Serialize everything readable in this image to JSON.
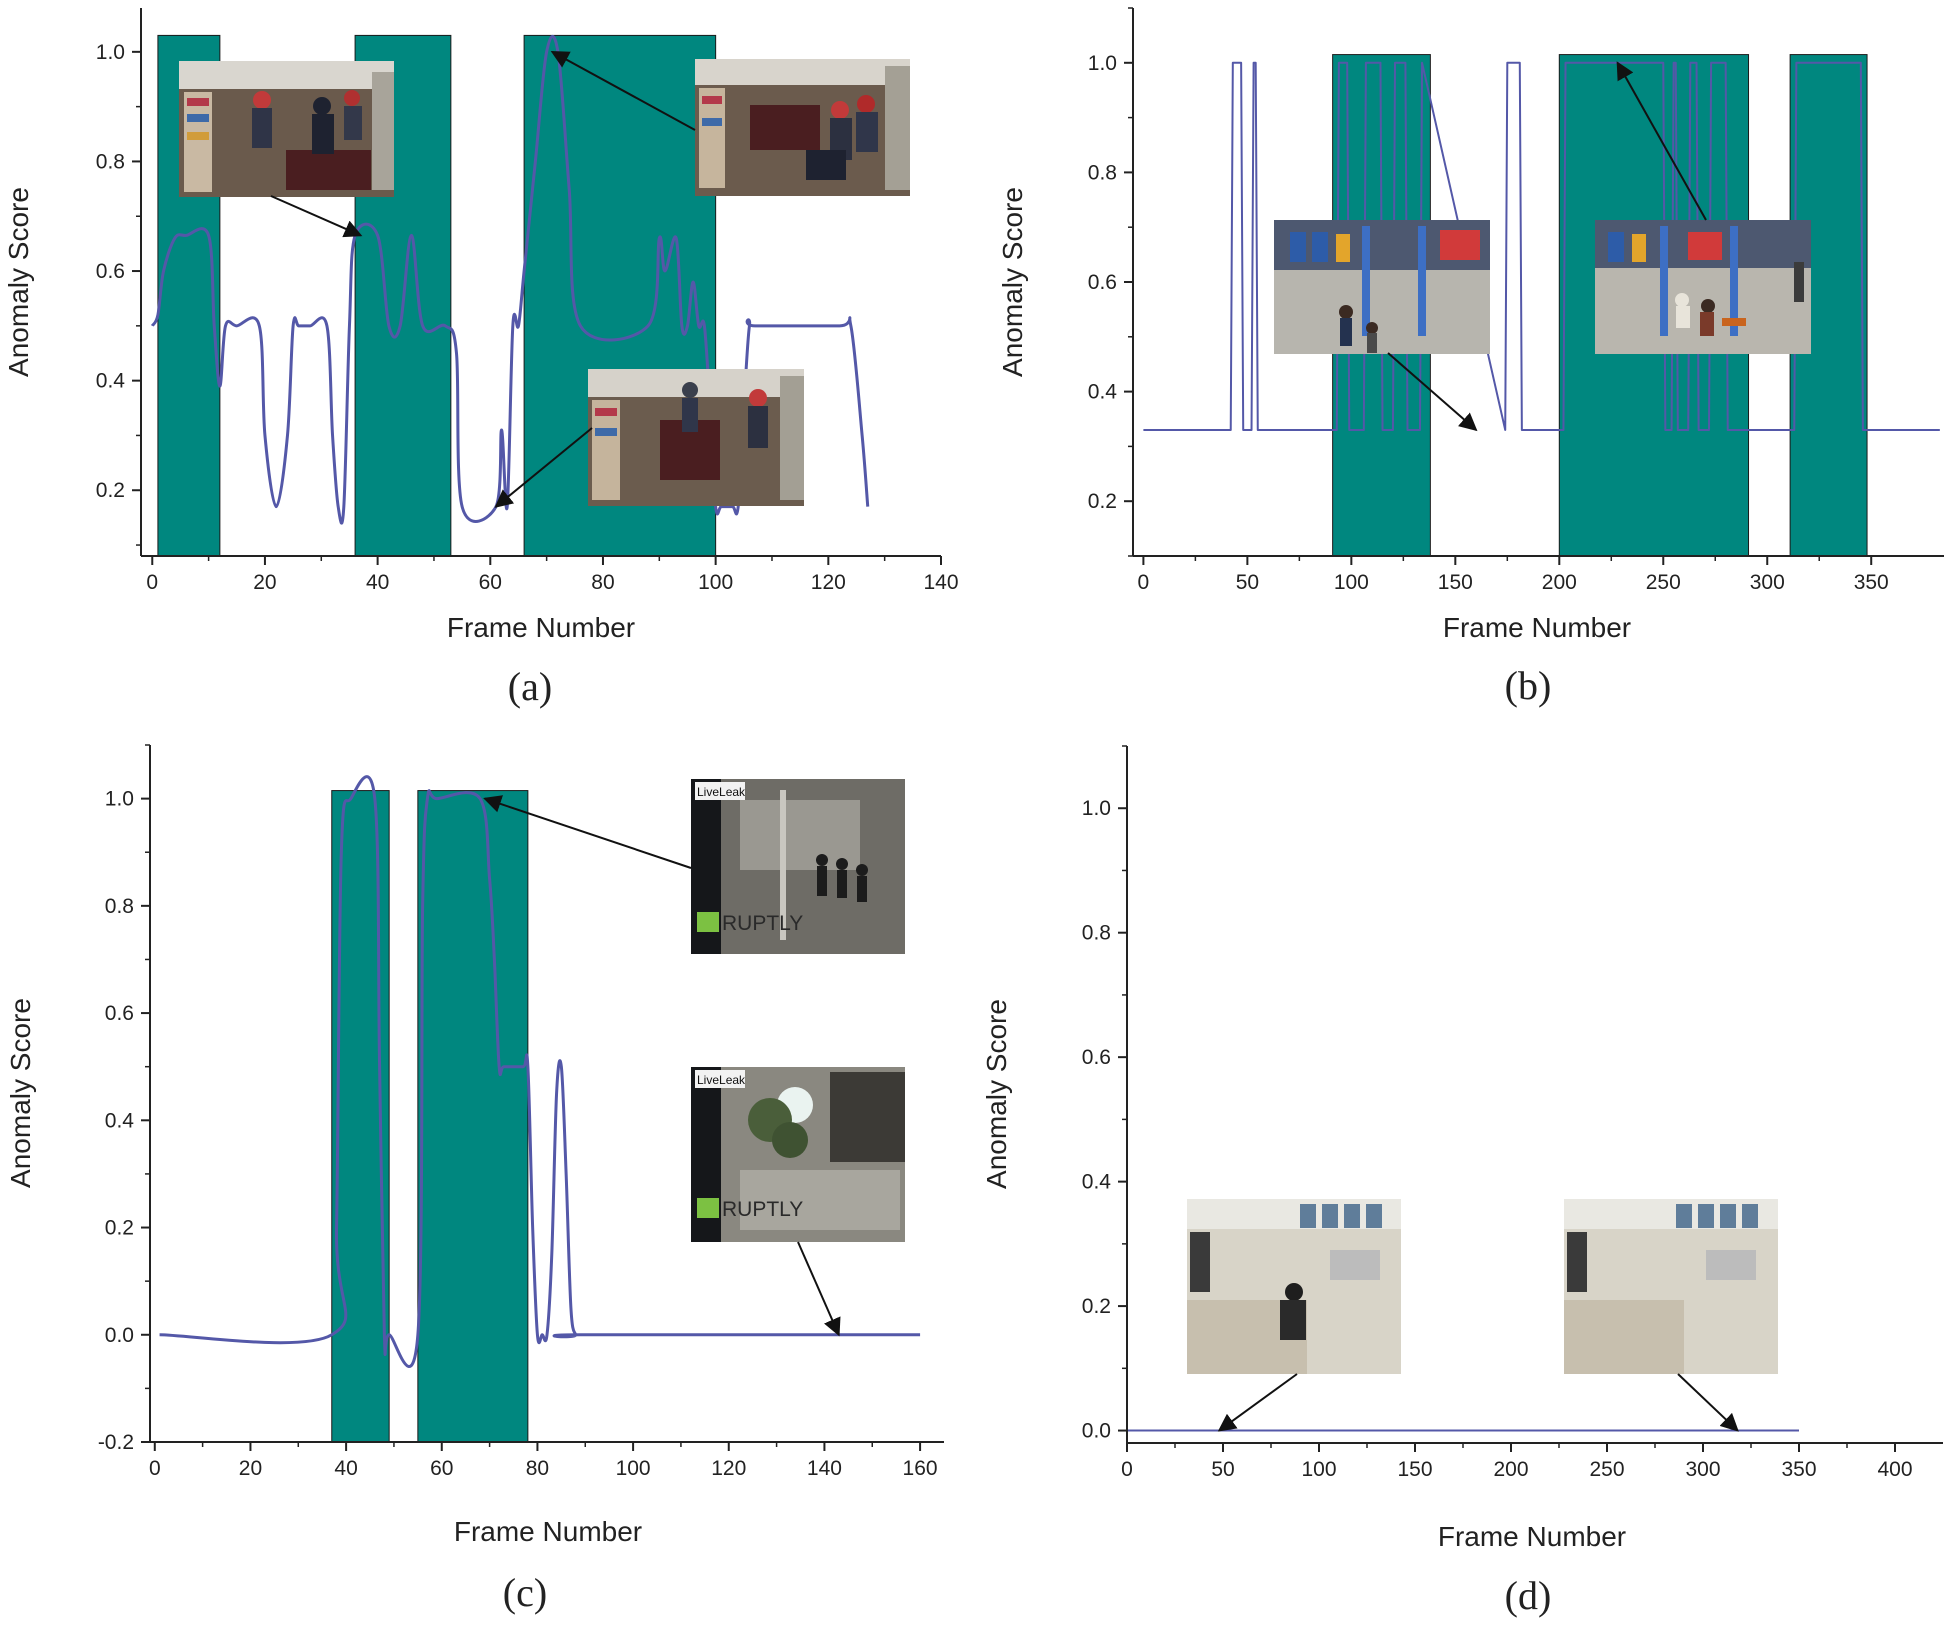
{
  "colors": {
    "highlight": "#00877f",
    "curve": "#5458a8",
    "axis": "#222222",
    "arrow": "#111111"
  },
  "chart_data": [
    {
      "type": "line",
      "caption": "(a)",
      "xlabel": "Frame Number",
      "ylabel": "Anomaly Score",
      "xlim": [
        -2,
        140
      ],
      "ylim": [
        0.08,
        1.08
      ],
      "xticks": [
        0,
        20,
        40,
        60,
        80,
        100,
        120,
        140
      ],
      "yticks": [
        0.2,
        0.4,
        0.6,
        0.8,
        1.0
      ],
      "xtick_labels": [
        "0",
        "20",
        "40",
        "60",
        "80",
        "100",
        "120",
        "140"
      ],
      "ytick_labels": [
        "0.2",
        "0.4",
        "0.6",
        "0.8",
        "1.0"
      ],
      "highlight_top": 1.03,
      "highlight_regions": [
        [
          1,
          12
        ],
        [
          36,
          53
        ],
        [
          66,
          100
        ]
      ],
      "series": [
        {
          "name": "anomaly score",
          "curve": "smooth",
          "x": [
            0,
            1,
            2,
            4,
            6,
            10,
            11,
            12,
            13,
            15,
            19,
            20,
            22,
            24,
            25,
            26,
            28,
            31,
            32,
            33,
            34,
            35,
            36,
            40,
            42,
            44,
            46,
            48,
            52,
            54,
            55,
            61,
            62,
            63,
            64,
            65,
            66,
            68,
            70,
            72,
            74,
            76,
            88,
            90,
            91,
            93,
            94,
            95,
            96,
            97,
            98,
            99,
            100,
            101,
            103,
            104,
            105,
            106,
            107,
            122,
            124,
            126,
            127
          ],
          "y": [
            0.5,
            0.52,
            0.6,
            0.66,
            0.665,
            0.665,
            0.5,
            0.39,
            0.5,
            0.5,
            0.5,
            0.3,
            0.17,
            0.3,
            0.5,
            0.5,
            0.5,
            0.5,
            0.3,
            0.17,
            0.17,
            0.5,
            0.665,
            0.665,
            0.5,
            0.5,
            0.665,
            0.5,
            0.5,
            0.45,
            0.17,
            0.17,
            0.31,
            0.17,
            0.5,
            0.5,
            0.6,
            0.8,
            1.0,
            1.0,
            0.75,
            0.5,
            0.5,
            0.66,
            0.6,
            0.66,
            0.5,
            0.5,
            0.58,
            0.5,
            0.5,
            0.35,
            0.17,
            0.17,
            0.17,
            0.17,
            0.35,
            0.5,
            0.5,
            0.5,
            0.5,
            0.3,
            0.17
          ]
        }
      ],
      "insets": [
        {
          "name": "thumbnail-store-scuffle",
          "description": "store surveillance frame",
          "points_to": [
            37,
            0.665
          ]
        },
        {
          "name": "thumbnail-store-fight-peak",
          "description": "store surveillance frame",
          "points_to": [
            71,
            1.0
          ]
        },
        {
          "name": "thumbnail-store-normal",
          "description": "store surveillance frame",
          "points_to": [
            61,
            0.17
          ]
        }
      ]
    },
    {
      "type": "line",
      "caption": "(b)",
      "xlabel": "Frame Number",
      "ylabel": "Anomaly Score",
      "xlim": [
        -5,
        385
      ],
      "ylim": [
        0.1,
        1.1
      ],
      "xticks": [
        0,
        50,
        100,
        150,
        200,
        250,
        300,
        350
      ],
      "yticks": [
        0.2,
        0.4,
        0.6,
        0.8,
        1.0
      ],
      "xtick_labels": [
        "0",
        "50",
        "100",
        "150",
        "200",
        "250",
        "300",
        "350"
      ],
      "ytick_labels": [
        "0.2",
        "0.4",
        "0.6",
        "0.8",
        "1.0"
      ],
      "highlight_top": 1.015,
      "highlight_regions": [
        [
          91,
          138
        ],
        [
          200,
          291
        ],
        [
          311,
          348
        ]
      ],
      "series": [
        {
          "name": "anomaly score",
          "curve": "step",
          "x": [
            0,
            42,
            43,
            47,
            48,
            52,
            53,
            54,
            55,
            93,
            94,
            98,
            99,
            106,
            107,
            114,
            115,
            120,
            121,
            126,
            127,
            133,
            134,
            174,
            175,
            181,
            182,
            202,
            203,
            250,
            251,
            254,
            255,
            256,
            257,
            262,
            263,
            266,
            267,
            272,
            273,
            280,
            281,
            313,
            314,
            345,
            346,
            383
          ],
          "y": [
            0.33,
            0.33,
            1.0,
            1.0,
            0.33,
            0.33,
            1.0,
            1.0,
            0.33,
            0.33,
            1.0,
            1.0,
            0.33,
            0.33,
            1.0,
            1.0,
            0.33,
            0.33,
            1.0,
            1.0,
            0.33,
            0.33,
            1.0,
            0.33,
            1.0,
            1.0,
            0.33,
            0.33,
            1.0,
            1.0,
            0.33,
            0.33,
            1.0,
            1.0,
            0.33,
            0.33,
            1.0,
            1.0,
            0.33,
            0.33,
            1.0,
            1.0,
            0.33,
            0.33,
            1.0,
            1.0,
            0.33,
            0.33
          ]
        }
      ],
      "insets": [
        {
          "name": "thumbnail-garage-normal",
          "description": "garage surveillance frame",
          "points_to": [
            160,
            0.33
          ]
        },
        {
          "name": "thumbnail-garage-fight",
          "description": "garage surveillance frame",
          "points_to": [
            228,
            1.0
          ]
        }
      ]
    },
    {
      "type": "line",
      "caption": "(c)",
      "xlabel": "Frame Number",
      "ylabel": "Anomaly Score",
      "xlim": [
        -1,
        165
      ],
      "ylim": [
        -0.2,
        1.1
      ],
      "xticks": [
        0,
        20,
        40,
        60,
        80,
        100,
        120,
        140,
        160
      ],
      "yticks": [
        -0.2,
        0.0,
        0.2,
        0.4,
        0.6,
        0.8,
        1.0
      ],
      "xtick_labels": [
        "0",
        "20",
        "40",
        "60",
        "80",
        "100",
        "120",
        "140",
        "160"
      ],
      "ytick_labels": [
        "-0.2",
        "0.0",
        "0.2",
        "0.4",
        "0.6",
        "0.8",
        "1.0"
      ],
      "highlight_top": 1.015,
      "highlight_regions": [
        [
          37,
          49
        ],
        [
          55,
          78
        ]
      ],
      "series": [
        {
          "name": "anomaly score",
          "curve": "smooth",
          "x": [
            1,
            37,
            38,
            39,
            41,
            46,
            47,
            48,
            49,
            55,
            56,
            57,
            59,
            68,
            70,
            71,
            72,
            73,
            77,
            78,
            79,
            80,
            81,
            82,
            83,
            84,
            85,
            86,
            87,
            88,
            89,
            160
          ],
          "y": [
            0.0,
            0.0,
            0.2,
            0.9,
            1.0,
            1.0,
            0.5,
            0.0,
            0.0,
            0.0,
            0.8,
            1.0,
            1.0,
            1.0,
            0.85,
            0.7,
            0.5,
            0.5,
            0.5,
            0.5,
            0.2,
            0.0,
            0.0,
            0.0,
            0.15,
            0.45,
            0.5,
            0.3,
            0.05,
            0.0,
            0.0,
            0.0
          ]
        }
      ],
      "insets": [
        {
          "name": "thumbnail-street-fight",
          "description": "night street frame",
          "logo_text": [
            "LiveLeak",
            "RUPTLY"
          ],
          "points_to": [
            69,
            1.0
          ]
        },
        {
          "name": "thumbnail-street-normal",
          "description": "night street frame",
          "logo_text": [
            "LiveLeak",
            "RUPTLY"
          ],
          "points_to": [
            143,
            0.0
          ]
        }
      ]
    },
    {
      "type": "line",
      "caption": "(d)",
      "xlabel": "Frame Number",
      "ylabel": "Anomaly Score",
      "xlim": [
        0,
        425
      ],
      "ylim": [
        -0.02,
        1.1
      ],
      "xticks": [
        0,
        50,
        100,
        150,
        200,
        250,
        300,
        350,
        400
      ],
      "yticks": [
        0.0,
        0.2,
        0.4,
        0.6,
        0.8,
        1.0
      ],
      "xtick_labels": [
        "0",
        "50",
        "100",
        "150",
        "200",
        "250",
        "300",
        "350",
        "400"
      ],
      "ytick_labels": [
        "0.0",
        "0.2",
        "0.4",
        "0.6",
        "0.8",
        "1.0"
      ],
      "highlight_regions": [],
      "series": [
        {
          "name": "anomaly score",
          "curve": "step",
          "x": [
            0,
            350
          ],
          "y": [
            0.0,
            0.0
          ]
        }
      ],
      "insets": [
        {
          "name": "thumbnail-office-normal-1",
          "description": "office surveillance frame",
          "points_to": [
            48,
            0.0
          ]
        },
        {
          "name": "thumbnail-office-normal-2",
          "description": "office surveillance frame",
          "points_to": [
            318,
            0.0
          ]
        }
      ]
    }
  ]
}
